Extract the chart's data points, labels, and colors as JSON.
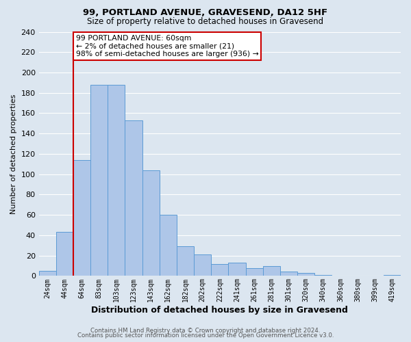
{
  "title": "99, PORTLAND AVENUE, GRAVESEND, DA12 5HF",
  "subtitle": "Size of property relative to detached houses in Gravesend",
  "xlabel": "Distribution of detached houses by size in Gravesend",
  "ylabel": "Number of detached properties",
  "bar_labels": [
    "24sqm",
    "44sqm",
    "64sqm",
    "83sqm",
    "103sqm",
    "123sqm",
    "143sqm",
    "162sqm",
    "182sqm",
    "202sqm",
    "222sqm",
    "241sqm",
    "261sqm",
    "281sqm",
    "301sqm",
    "320sqm",
    "340sqm",
    "360sqm",
    "380sqm",
    "399sqm",
    "419sqm"
  ],
  "bar_values": [
    5,
    43,
    114,
    188,
    188,
    153,
    104,
    60,
    29,
    21,
    12,
    13,
    8,
    10,
    4,
    3,
    1,
    0,
    0,
    0,
    1
  ],
  "bar_color": "#aec6e8",
  "bar_edge_color": "#5b9bd5",
  "bg_color": "#dce6f0",
  "grid_color": "#ffffff",
  "vline_color": "#cc0000",
  "vline_x_index": 2,
  "annotation_title": "99 PORTLAND AVENUE: 60sqm",
  "annotation_line1": "← 2% of detached houses are smaller (21)",
  "annotation_line2": "98% of semi-detached houses are larger (936) →",
  "annotation_box_color": "#ffffff",
  "annotation_border_color": "#cc0000",
  "ylim": [
    0,
    240
  ],
  "yticks": [
    0,
    20,
    40,
    60,
    80,
    100,
    120,
    140,
    160,
    180,
    200,
    220,
    240
  ],
  "footer1": "Contains HM Land Registry data © Crown copyright and database right 2024.",
  "footer2": "Contains public sector information licensed under the Open Government Licence v3.0."
}
